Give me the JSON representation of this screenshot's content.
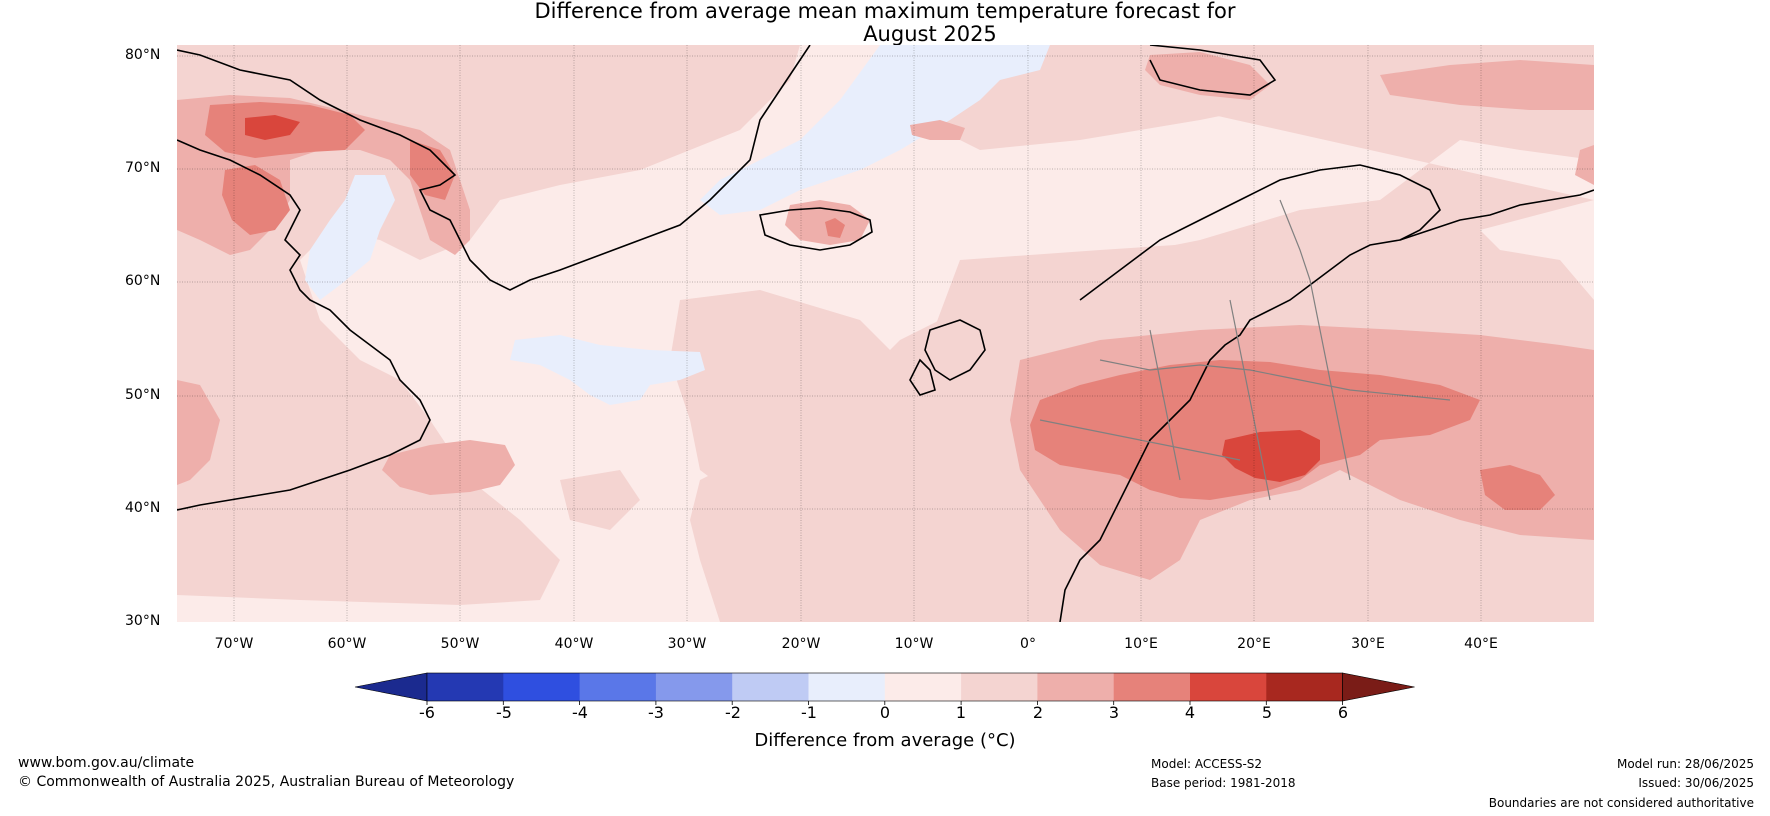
{
  "title": {
    "line1": "Difference from average mean maximum temperature forecast for",
    "line2": "August 2025"
  },
  "map": {
    "lat_labels": [
      "80°N",
      "70°N",
      "60°N",
      "50°N",
      "40°N",
      "30°N"
    ],
    "lon_labels": [
      "70°W",
      "60°W",
      "50°W",
      "40°W",
      "30°W",
      "20°W",
      "10°W",
      "0°",
      "10°E",
      "20°E",
      "30°E",
      "40°E"
    ],
    "colors": {
      "lt_m1": "#e8eefc",
      "0_1": "#fcebe9",
      "1_2": "#f4d4d1",
      "2_3": "#eeafab",
      "3_4": "#e6827a",
      "4_5": "#d9463c",
      "coast": "#000000",
      "border": "#808080"
    }
  },
  "colorbar": {
    "ticks": [
      "-6",
      "-5",
      "-4",
      "-3",
      "-2",
      "-1",
      "0",
      "1",
      "2",
      "3",
      "4",
      "5",
      "6"
    ],
    "colors": [
      "#1b2a8f",
      "#2439b3",
      "#2f4fe0",
      "#5a77e8",
      "#8599ec",
      "#bfcbf4",
      "#e8eefc",
      "#fcebe9",
      "#f4d4d1",
      "#eeafab",
      "#e6827a",
      "#d9463c",
      "#a8281f",
      "#7a1c17"
    ],
    "label": "Difference from average (°C)"
  },
  "footer": {
    "website": "www.bom.gov.au/climate",
    "copyright": "© Commonwealth of Australia 2025, Australian Bureau of Meteorology",
    "model": "Model: ACCESS-S2",
    "base_period": "Base period: 1981-2018",
    "model_run": "Model run: 28/06/2025",
    "issued": "Issued: 30/06/2025",
    "disclaimer": "Boundaries are not considered authoritative"
  }
}
